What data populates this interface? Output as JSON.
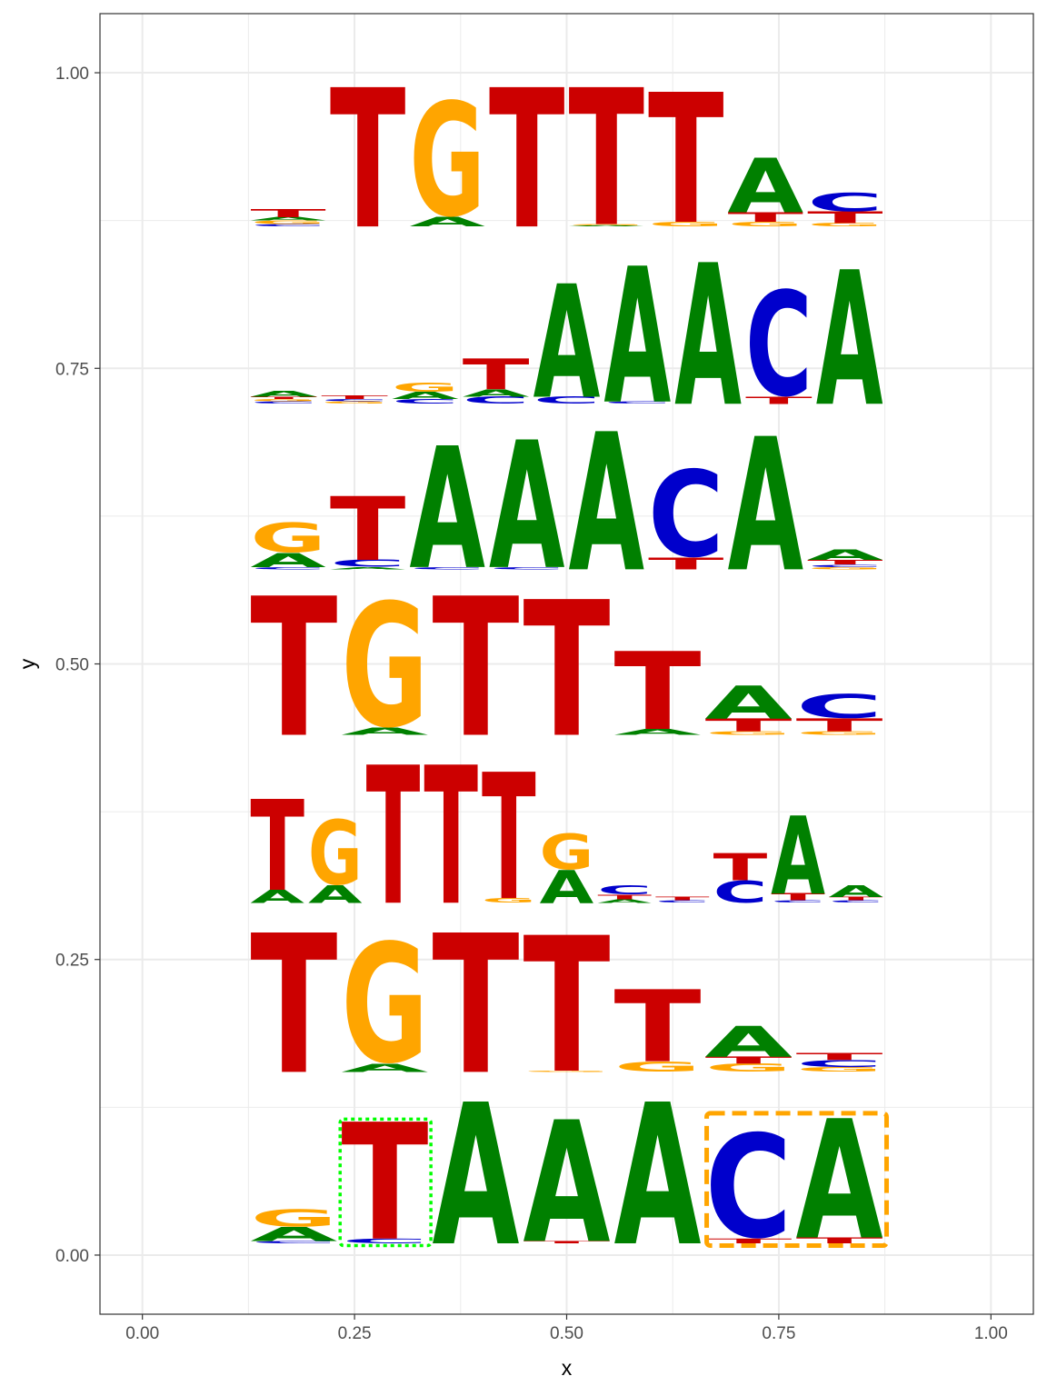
{
  "colors": {
    "A": "#008000",
    "C": "#0000cc",
    "G": "#ffa500",
    "T": "#cc0000",
    "highlight_green": "#00ff00",
    "highlight_orange": "#ffa500",
    "grid": "#ebebeb",
    "panel_border": "#333333"
  },
  "chart_data": {
    "type": "sequence-logo",
    "xlabel": "x",
    "ylabel": "y",
    "xlim": [
      -0.05,
      1.05
    ],
    "ylim": [
      -0.05,
      1.05
    ],
    "x_ticks": [
      "0.00",
      "0.25",
      "0.50",
      "0.75",
      "1.00"
    ],
    "y_ticks": [
      "0.00",
      "0.25",
      "0.50",
      "0.75",
      "1.00"
    ],
    "grid": true,
    "logo_x_range": [
      0.125,
      0.875
    ],
    "rows": [
      {
        "name": "row1",
        "baseline": 0.87,
        "positions": [
          [
            [
              "C",
              0.002
            ],
            [
              "G",
              0.003
            ],
            [
              "A",
              0.003
            ],
            [
              "T",
              0.007
            ]
          ],
          [
            [
              "T",
              0.118
            ]
          ],
          [
            [
              "A",
              0.008
            ],
            [
              "G",
              0.1
            ]
          ],
          [
            [
              "T",
              0.118
            ]
          ],
          [
            [
              "A",
              0.001
            ],
            [
              "G",
              0.001
            ],
            [
              "T",
              0.116
            ]
          ],
          [
            [
              "G",
              0.004
            ],
            [
              "T",
              0.11
            ]
          ],
          [
            [
              "G",
              0.004
            ],
            [
              "T",
              0.008
            ],
            [
              "A",
              0.046
            ]
          ],
          [
            [
              "G",
              0.003
            ],
            [
              "T",
              0.01
            ],
            [
              "C",
              0.016
            ]
          ]
        ]
      },
      {
        "name": "row2",
        "baseline": 0.72,
        "positions": [
          [
            [
              "C",
              0.002
            ],
            [
              "G",
              0.002
            ],
            [
              "T",
              0.002
            ],
            [
              "A",
              0.005
            ]
          ],
          [
            [
              "G",
              0.002
            ],
            [
              "C",
              0.002
            ],
            [
              "T",
              0.003
            ]
          ],
          [
            [
              "C",
              0.004
            ],
            [
              "A",
              0.006
            ],
            [
              "G",
              0.008
            ]
          ],
          [
            [
              "C",
              0.006
            ],
            [
              "A",
              0.006
            ],
            [
              "T",
              0.026
            ]
          ],
          [
            [
              "C",
              0.006
            ],
            [
              "A",
              0.096
            ]
          ],
          [
            [
              "C",
              0.002
            ],
            [
              "A",
              0.115
            ]
          ],
          [
            [
              "A",
              0.12
            ]
          ],
          [
            [
              "T",
              0.006
            ],
            [
              "C",
              0.092
            ]
          ],
          [
            [
              "A",
              0.114
            ]
          ]
        ]
      },
      {
        "name": "row3",
        "baseline": 0.58,
        "positions": [
          [
            [
              "C",
              0.002
            ],
            [
              "A",
              0.012
            ],
            [
              "G",
              0.026
            ]
          ],
          [
            [
              "A",
              0.002
            ],
            [
              "C",
              0.006
            ],
            [
              "T",
              0.054
            ]
          ],
          [
            [
              "C",
              0.002
            ],
            [
              "A",
              0.103
            ]
          ],
          [
            [
              "C",
              0.002
            ],
            [
              "A",
              0.108
            ]
          ],
          [
            [
              "A",
              0.117
            ]
          ],
          [
            [
              "T",
              0.01
            ],
            [
              "C",
              0.076
            ]
          ],
          [
            [
              "A",
              0.113
            ]
          ],
          [
            [
              "G",
              0.002
            ],
            [
              "C",
              0.002
            ],
            [
              "T",
              0.004
            ],
            [
              "A",
              0.009
            ]
          ]
        ]
      },
      {
        "name": "row4",
        "baseline": 0.44,
        "positions": [
          [
            [
              "T",
              0.118
            ]
          ],
          [
            [
              "A",
              0.006
            ],
            [
              "G",
              0.109
            ]
          ],
          [
            [
              "T",
              0.118
            ]
          ],
          [
            [
              "T",
              0.115
            ]
          ],
          [
            [
              "A",
              0.005
            ],
            [
              "T",
              0.066
            ]
          ],
          [
            [
              "G",
              0.003
            ],
            [
              "T",
              0.011
            ],
            [
              "A",
              0.028
            ]
          ],
          [
            [
              "G",
              0.003
            ],
            [
              "T",
              0.011
            ],
            [
              "C",
              0.021
            ]
          ]
        ]
      },
      {
        "name": "row5",
        "baseline": 0.298,
        "positions": [
          [
            [
              "A",
              0.011
            ],
            [
              "T",
              0.077
            ]
          ],
          [
            [
              "A",
              0.015
            ],
            [
              "G",
              0.057
            ]
          ],
          [
            [
              "T",
              0.117
            ]
          ],
          [
            [
              "T",
              0.117
            ]
          ],
          [
            [
              "G",
              0.004
            ],
            [
              "T",
              0.107
            ]
          ],
          [
            [
              "A",
              0.028
            ],
            [
              "G",
              0.031
            ]
          ],
          [
            [
              "A",
              0.003
            ],
            [
              "T",
              0.004
            ],
            [
              "C",
              0.008
            ]
          ],
          [
            [
              "C",
              0.002
            ],
            [
              "T",
              0.003
            ]
          ],
          [
            [
              "C",
              0.019
            ],
            [
              "T",
              0.023
            ]
          ],
          [
            [
              "C",
              0.002
            ],
            [
              "T",
              0.006
            ],
            [
              "A",
              0.066
            ]
          ],
          [
            [
              "C",
              0.002
            ],
            [
              "T",
              0.003
            ],
            [
              "A",
              0.01
            ]
          ]
        ]
      },
      {
        "name": "row6",
        "baseline": 0.155,
        "positions": [
          [
            [
              "T",
              0.118
            ]
          ],
          [
            [
              "A",
              0.007
            ],
            [
              "G",
              0.105
            ]
          ],
          [
            [
              "T",
              0.118
            ]
          ],
          [
            [
              "G",
              0.001
            ],
            [
              "T",
              0.115
            ]
          ],
          [
            [
              "G",
              0.009
            ],
            [
              "T",
              0.061
            ]
          ],
          [
            [
              "G",
              0.007
            ],
            [
              "T",
              0.006
            ],
            [
              "A",
              0.026
            ]
          ],
          [
            [
              "G",
              0.004
            ],
            [
              "C",
              0.006
            ],
            [
              "T",
              0.006
            ]
          ]
        ]
      },
      {
        "name": "row7",
        "baseline": 0.01,
        "positions": [
          [
            [
              "C",
              0.002
            ],
            [
              "A",
              0.012
            ],
            [
              "G",
              0.015
            ]
          ],
          [
            [
              "C",
              0.004
            ],
            [
              "T",
              0.099
            ]
          ],
          [
            [
              "A",
              0.12
            ]
          ],
          [
            [
              "T",
              0.002
            ],
            [
              "A",
              0.103
            ]
          ],
          [
            [
              "A",
              0.12
            ]
          ],
          [
            [
              "T",
              0.004
            ],
            [
              "C",
              0.091
            ]
          ],
          [
            [
              "T",
              0.005
            ],
            [
              "A",
              0.101
            ]
          ]
        ]
      }
    ],
    "highlights": [
      {
        "color": "green",
        "style": "dotted",
        "x": [
          0.233,
          0.34
        ],
        "y": [
          0.008,
          0.115
        ]
      },
      {
        "color": "orange",
        "style": "dashed",
        "x": [
          0.665,
          0.877
        ],
        "y": [
          0.008,
          0.12
        ]
      }
    ]
  }
}
